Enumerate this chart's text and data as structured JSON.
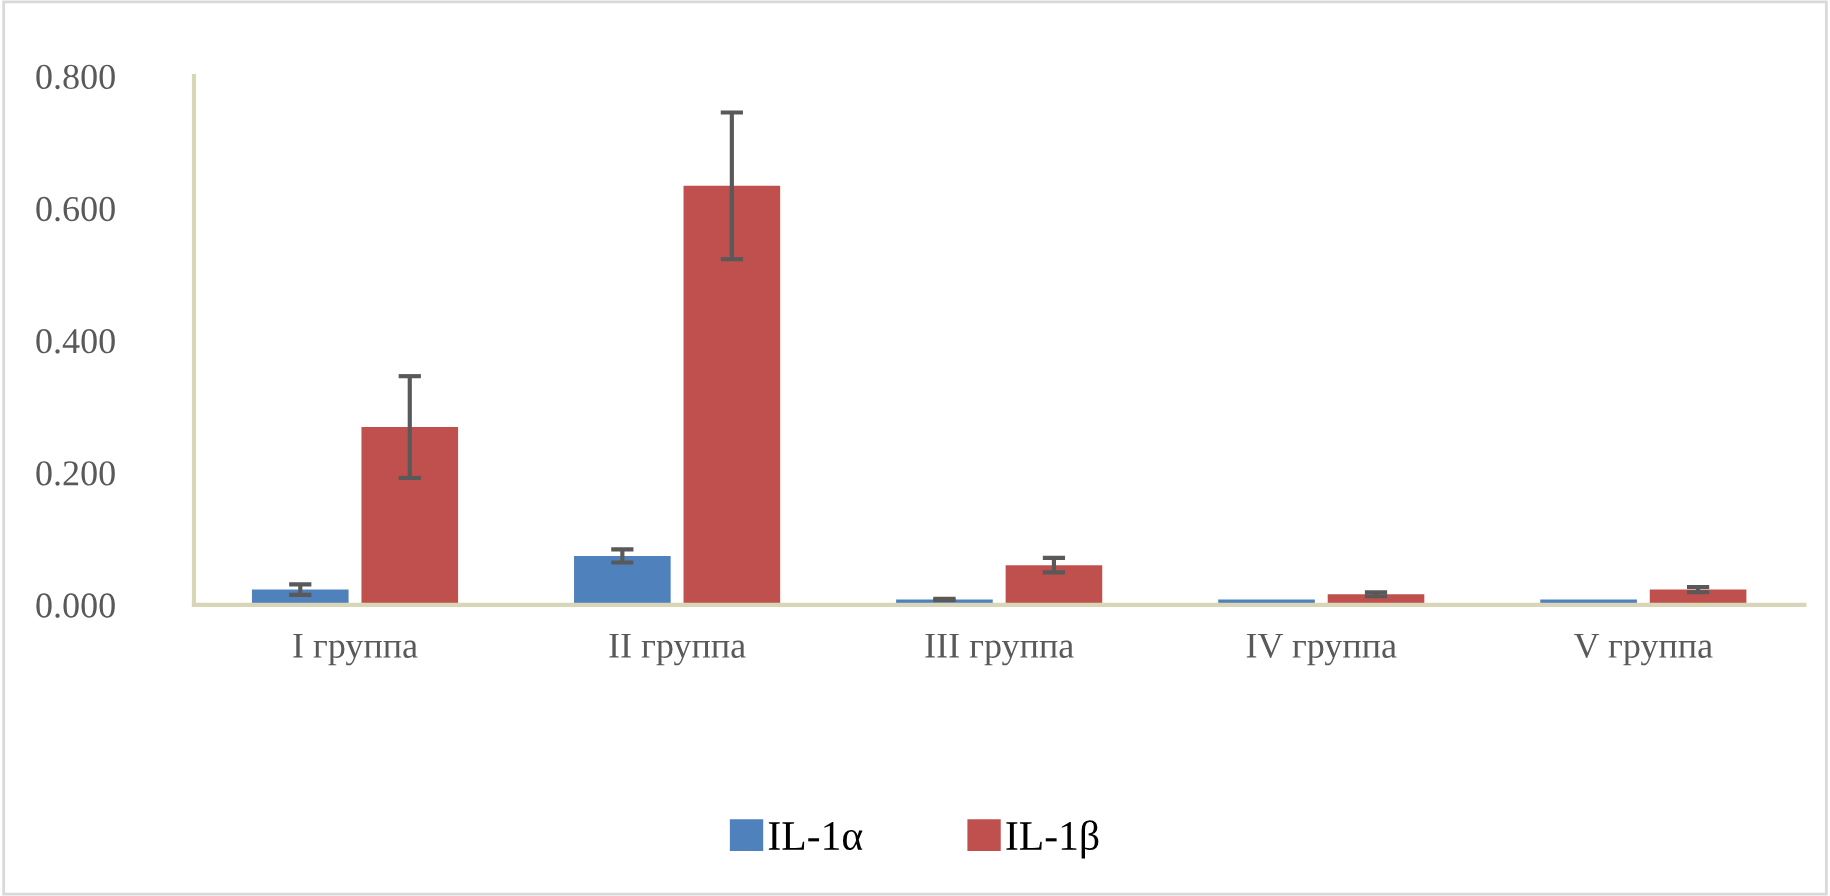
{
  "chart_data": {
    "type": "bar",
    "categories": [
      "I группа",
      "II группа",
      "III группа",
      "IV группа",
      "V группа"
    ],
    "series": [
      {
        "name": "IL-1α",
        "color": "#4f81bd",
        "values": [
          0.023,
          0.074,
          0.008,
          0.008,
          0.008
        ],
        "errors": [
          0.008,
          0.01,
          0.001,
          null,
          null
        ]
      },
      {
        "name": "IL-1β",
        "color": "#c0504d",
        "values": [
          0.269,
          0.634,
          0.06,
          0.016,
          0.023
        ],
        "errors": [
          0.077,
          0.111,
          0.011,
          0.003,
          0.004
        ]
      }
    ],
    "ylim": [
      0,
      0.8
    ],
    "yticks": [
      {
        "value": 0,
        "label": "0.000"
      },
      {
        "value": 0.2,
        "label": "0.200"
      },
      {
        "value": 0.4,
        "label": "0.400"
      },
      {
        "value": 0.6,
        "label": "0.600"
      },
      {
        "value": 0.8,
        "label": "0.800"
      }
    ],
    "grid": false,
    "legend": "bottom"
  }
}
